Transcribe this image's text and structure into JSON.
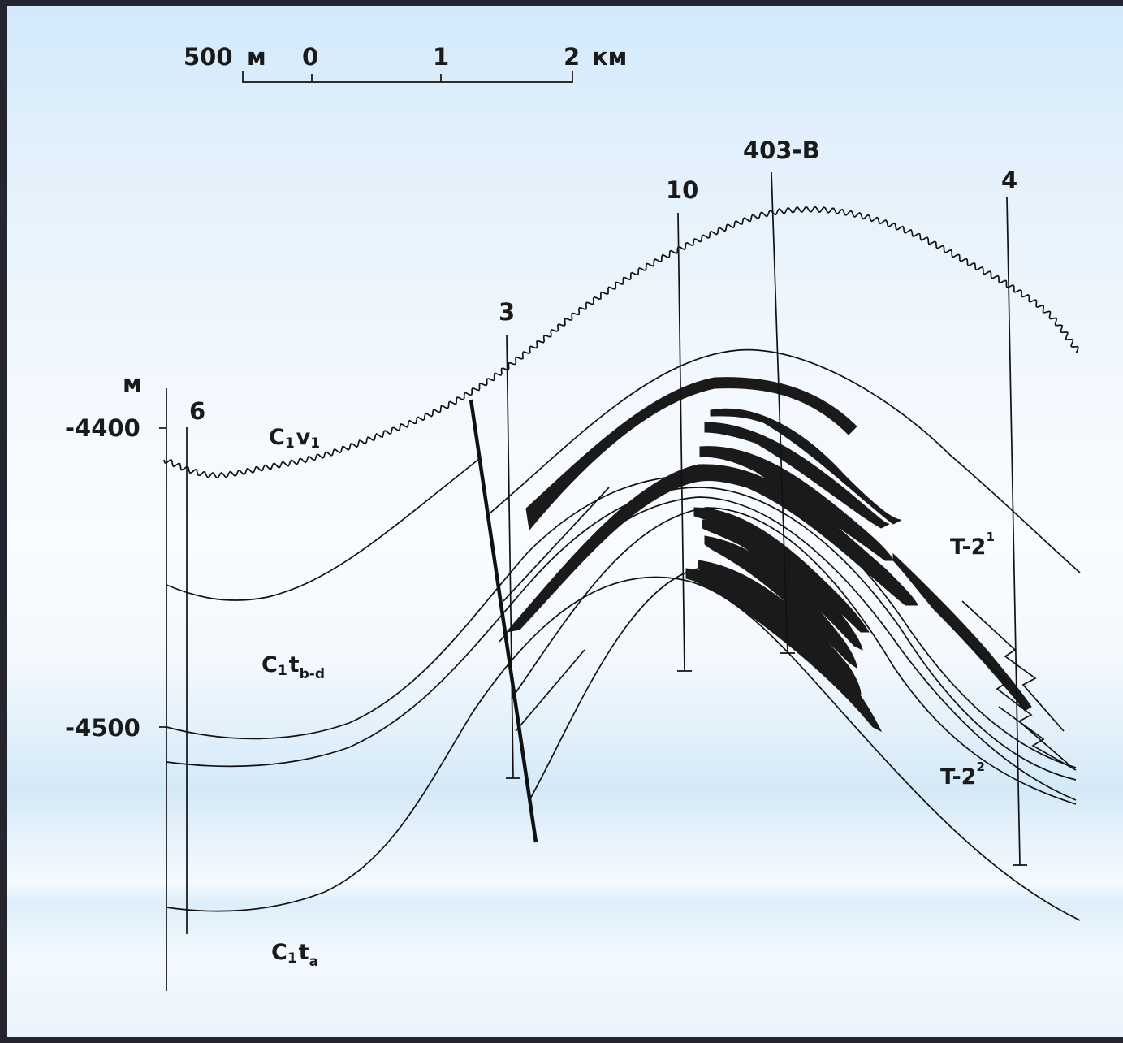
{
  "scale_bar": {
    "label_500": "500",
    "label_m": "м",
    "label_0": "0",
    "label_1": "1",
    "label_2": "2",
    "label_km": "км"
  },
  "depth_axis": {
    "unit": "м",
    "tick_4400": "-4400",
    "tick_4500": "-4500"
  },
  "wells": {
    "w6": "6",
    "w3": "3",
    "w10": "10",
    "w403": "403-В",
    "w4": "4"
  },
  "layers": {
    "c1v1": {
      "base": "C",
      "i1": "1",
      "mid": "v",
      "i2": "1"
    },
    "c1tbd": {
      "base": "C",
      "i1": "1",
      "mid": "t",
      "i2": "b-d"
    },
    "c1ta": {
      "base": "C",
      "i1": "1",
      "mid": "t",
      "i2": "a"
    }
  },
  "beds": {
    "t2_1": {
      "base": "T-2",
      "sup": "1"
    },
    "t2_2": {
      "base": "T-2",
      "sup": "2"
    }
  },
  "colors": {
    "line": "#111111",
    "fill": "#1a1a1a",
    "frame": "#252530",
    "background_top": "#d2e9fb",
    "background_mid": "#f9fcff"
  }
}
